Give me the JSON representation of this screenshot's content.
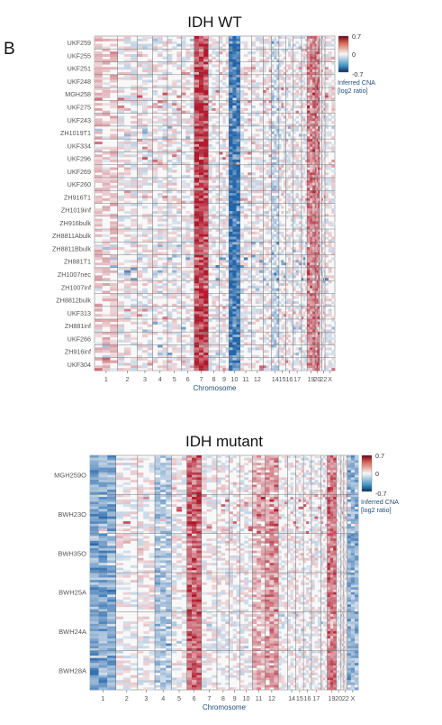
{
  "panel_label": "B",
  "colors": {
    "amplification": "#b2182b",
    "neutral": "#ffffff",
    "deletion": "#2166ac",
    "axis_text": "#555555",
    "axis_title": "#1f4e79"
  },
  "chart_data": [
    {
      "type": "heatmap",
      "title": "IDH WT",
      "xlabel": "Chromosome",
      "ylabel": "",
      "x_tick_labels": [
        "1",
        "2",
        "3",
        "4",
        "5",
        "6",
        "7",
        "8",
        "9",
        "10",
        "11",
        "12",
        "14",
        "15",
        "16",
        "17",
        "19",
        "20",
        "22",
        "X"
      ],
      "chromosomes": [
        "1",
        "2",
        "3",
        "4",
        "5",
        "6",
        "7",
        "8",
        "9",
        "10",
        "11",
        "12",
        "13",
        "14",
        "15",
        "16",
        "17",
        "18",
        "19",
        "20",
        "21",
        "22",
        "X"
      ],
      "rows": [
        "UKF259",
        "UKF255",
        "UKF251",
        "UKF248",
        "MGH258",
        "UKF275",
        "UKF243",
        "ZH1019T1",
        "UKF334",
        "UKF296",
        "UKF269",
        "UKF260",
        "ZH916T1",
        "ZH1019inf",
        "ZH916bulk",
        "ZH8811Abulk",
        "ZH8811Bbulk",
        "ZH881T1",
        "ZH1007nec",
        "ZH1007inf",
        "ZH8812bulk",
        "UKF313",
        "ZH881inf",
        "UKF266",
        "ZH916inf",
        "UKF304"
      ],
      "colorbar": {
        "min": -0.7,
        "mid": 0,
        "max": 0.7,
        "tick_labels": [
          "0.7",
          "0",
          "-0.7"
        ],
        "title": "Inferred CNA\n[log2 ratio]"
      },
      "dominant_events": [
        {
          "chromosome": "7",
          "direction": "gain"
        },
        {
          "chromosome": "10",
          "direction": "loss"
        },
        {
          "chromosome": "19",
          "direction": "gain"
        },
        {
          "chromosome": "20",
          "direction": "gain"
        }
      ],
      "grid": false,
      "legend_position": "top-right"
    },
    {
      "type": "heatmap",
      "title": "IDH mutant",
      "xlabel": "Chromosome",
      "ylabel": "",
      "x_tick_labels": [
        "1",
        "2",
        "3",
        "4",
        "5",
        "6",
        "7",
        "8",
        "9",
        "10",
        "11",
        "12",
        "14",
        "15",
        "16",
        "17",
        "19",
        "20",
        "22",
        "X"
      ],
      "chromosomes": [
        "1",
        "2",
        "3",
        "4",
        "5",
        "6",
        "7",
        "8",
        "9",
        "10",
        "11",
        "12",
        "13",
        "14",
        "15",
        "16",
        "17",
        "18",
        "19",
        "20",
        "21",
        "22",
        "X"
      ],
      "rows": [
        "MGH259O",
        "BWH23O",
        "BWH35O",
        "BWH25A",
        "BWH24A",
        "BWH28A"
      ],
      "colorbar": {
        "min": -0.7,
        "mid": 0,
        "max": 0.7,
        "tick_labels": [
          "0.7",
          "0",
          "-0.7"
        ],
        "title": "Inferred CNA\n[log2 ratio]"
      },
      "dominant_events": [
        {
          "chromosome": "1",
          "direction": "loss"
        },
        {
          "chromosome": "6",
          "direction": "gain"
        },
        {
          "chromosome": "12",
          "direction": "gain"
        },
        {
          "chromosome": "19",
          "direction": "gain"
        }
      ],
      "grid": false,
      "legend_position": "top-right"
    }
  ]
}
